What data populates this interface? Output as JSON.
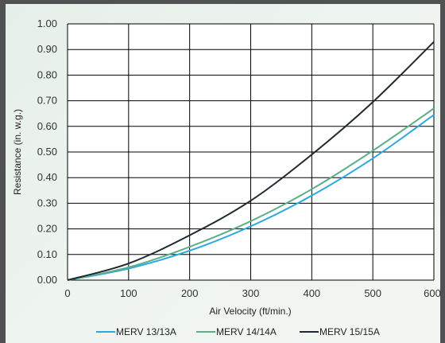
{
  "chart_data": {
    "type": "line",
    "title": "",
    "xlabel": "Air Velocity (ft/min.)",
    "ylabel": "Resistance (in. w.g.)",
    "xlim": [
      0,
      600
    ],
    "ylim": [
      0,
      1.0
    ],
    "xticks": [
      "0",
      "100",
      "200",
      "300",
      "400",
      "500",
      "600"
    ],
    "yticks": [
      "0.00",
      "0.10",
      "0.20",
      "0.30",
      "0.40",
      "0.50",
      "0.60",
      "0.70",
      "0.80",
      "0.90",
      "1.00"
    ],
    "grid": true,
    "legend_position": "bottom",
    "x": [
      0,
      100,
      200,
      300,
      400,
      500,
      600
    ],
    "series": [
      {
        "name": "MERV 13/13A",
        "color": "#29a9e0",
        "values": [
          0,
          0.045,
          0.115,
          0.21,
          0.33,
          0.475,
          0.645
        ]
      },
      {
        "name": "MERV 14/14A",
        "color": "#5fae8a",
        "values": [
          0,
          0.05,
          0.13,
          0.23,
          0.355,
          0.505,
          0.67
        ]
      },
      {
        "name": "MERV 15/15A",
        "color": "#1f2a30",
        "values": [
          0,
          0.065,
          0.175,
          0.31,
          0.49,
          0.695,
          0.93
        ]
      }
    ]
  }
}
